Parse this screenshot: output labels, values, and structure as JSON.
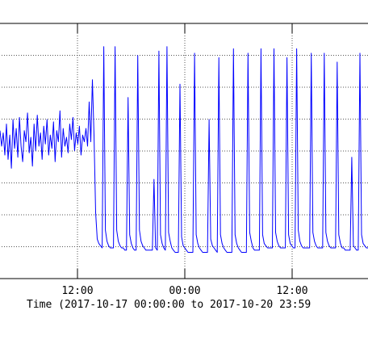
{
  "chart_data": {
    "type": "line",
    "title": "",
    "ylabel": "",
    "xlabel": "Time (2017-10-17 00:00:00 to 2017-10-20 23:59",
    "x_ticks": [
      "12:00",
      "00:00",
      "12:00"
    ],
    "y_gridlines": 7,
    "grid": true,
    "line_color": "#0000ff",
    "series": [
      {
        "values": [
          0.57,
          0.5,
          0.56,
          0.46,
          0.6,
          0.44,
          0.55,
          0.4,
          0.62,
          0.49,
          0.58,
          0.45,
          0.63,
          0.5,
          0.43,
          0.57,
          0.52,
          0.65,
          0.47,
          0.54,
          0.41,
          0.6,
          0.48,
          0.64,
          0.5,
          0.56,
          0.44,
          0.59,
          0.51,
          0.62,
          0.46,
          0.55,
          0.49,
          0.61,
          0.43,
          0.57,
          0.52,
          0.66,
          0.45,
          0.58,
          0.5,
          0.54,
          0.47,
          0.6,
          0.53,
          0.63,
          0.48,
          0.56,
          0.51,
          0.59,
          0.46,
          0.55,
          0.52,
          0.58,
          0.5,
          0.7,
          0.52,
          0.8,
          0.55,
          0.2,
          0.08,
          0.06,
          0.05,
          0.04,
          0.95,
          0.12,
          0.07,
          0.05,
          0.04,
          0.04,
          0.04,
          0.95,
          0.12,
          0.07,
          0.05,
          0.04,
          0.04,
          0.03,
          0.03,
          0.72,
          0.1,
          0.06,
          0.04,
          0.03,
          0.03,
          0.91,
          0.12,
          0.07,
          0.05,
          0.04,
          0.03,
          0.03,
          0.03,
          0.03,
          0.03,
          0.35,
          0.04,
          0.03,
          0.93,
          0.1,
          0.06,
          0.04,
          0.03,
          0.95,
          0.11,
          0.07,
          0.04,
          0.03,
          0.02,
          0.02,
          0.02,
          0.78,
          0.09,
          0.05,
          0.04,
          0.03,
          0.02,
          0.02,
          0.02,
          0.02,
          0.92,
          0.1,
          0.06,
          0.04,
          0.03,
          0.02,
          0.02,
          0.02,
          0.02,
          0.62,
          0.08,
          0.05,
          0.04,
          0.03,
          0.02,
          0.9,
          0.1,
          0.06,
          0.04,
          0.03,
          0.02,
          0.02,
          0.02,
          0.02,
          0.94,
          0.1,
          0.06,
          0.04,
          0.03,
          0.02,
          0.02,
          0.02,
          0.02,
          0.92,
          0.11,
          0.07,
          0.04,
          0.03,
          0.03,
          0.03,
          0.03,
          0.94,
          0.1,
          0.06,
          0.05,
          0.04,
          0.04,
          0.04,
          0.04,
          0.94,
          0.11,
          0.07,
          0.05,
          0.04,
          0.04,
          0.04,
          0.04,
          0.9,
          0.1,
          0.06,
          0.05,
          0.04,
          0.04,
          0.94,
          0.12,
          0.07,
          0.05,
          0.04,
          0.04,
          0.04,
          0.04,
          0.04,
          0.92,
          0.11,
          0.07,
          0.05,
          0.04,
          0.04,
          0.04,
          0.04,
          0.92,
          0.11,
          0.07,
          0.05,
          0.04,
          0.04,
          0.04,
          0.04,
          0.88,
          0.1,
          0.06,
          0.04,
          0.04,
          0.03,
          0.03,
          0.03,
          0.03,
          0.45,
          0.05,
          0.04,
          0.03,
          0.03,
          0.92,
          0.1,
          0.06,
          0.05,
          0.04,
          0.04
        ]
      }
    ],
    "ylim": [
      0,
      1
    ]
  }
}
